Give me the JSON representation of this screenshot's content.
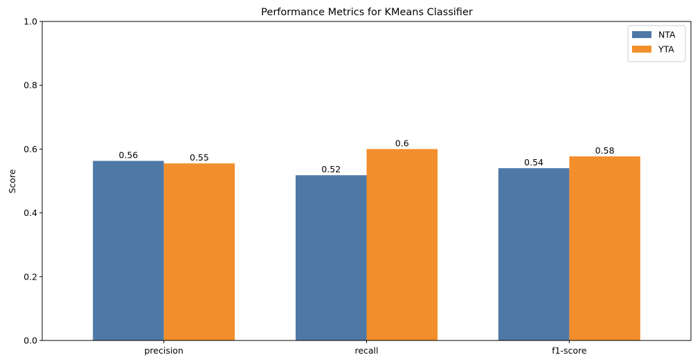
{
  "chart_data": {
    "type": "bar",
    "title": "Performance Metrics for KMeans Classifier",
    "xlabel": "",
    "ylabel": "Score",
    "categories": [
      "precision",
      "recall",
      "f1-score"
    ],
    "series": [
      {
        "name": "NTA",
        "color": "#4e79a7",
        "values": [
          0.563,
          0.518,
          0.54
        ],
        "value_labels": [
          "0.56",
          "0.52",
          "0.54"
        ]
      },
      {
        "name": "YTA",
        "color": "#f28e2b",
        "values": [
          0.555,
          0.6,
          0.577
        ],
        "value_labels": [
          "0.55",
          "0.6",
          "0.58"
        ]
      }
    ],
    "ylim": [
      0,
      1
    ],
    "yticks": [
      0,
      0.2,
      0.4,
      0.6,
      0.8,
      1.0
    ],
    "ytick_labels": [
      "0.0",
      "0.2",
      "0.4",
      "0.6",
      "0.8",
      "1.0"
    ],
    "grid": false,
    "legend_position": "top-right"
  }
}
